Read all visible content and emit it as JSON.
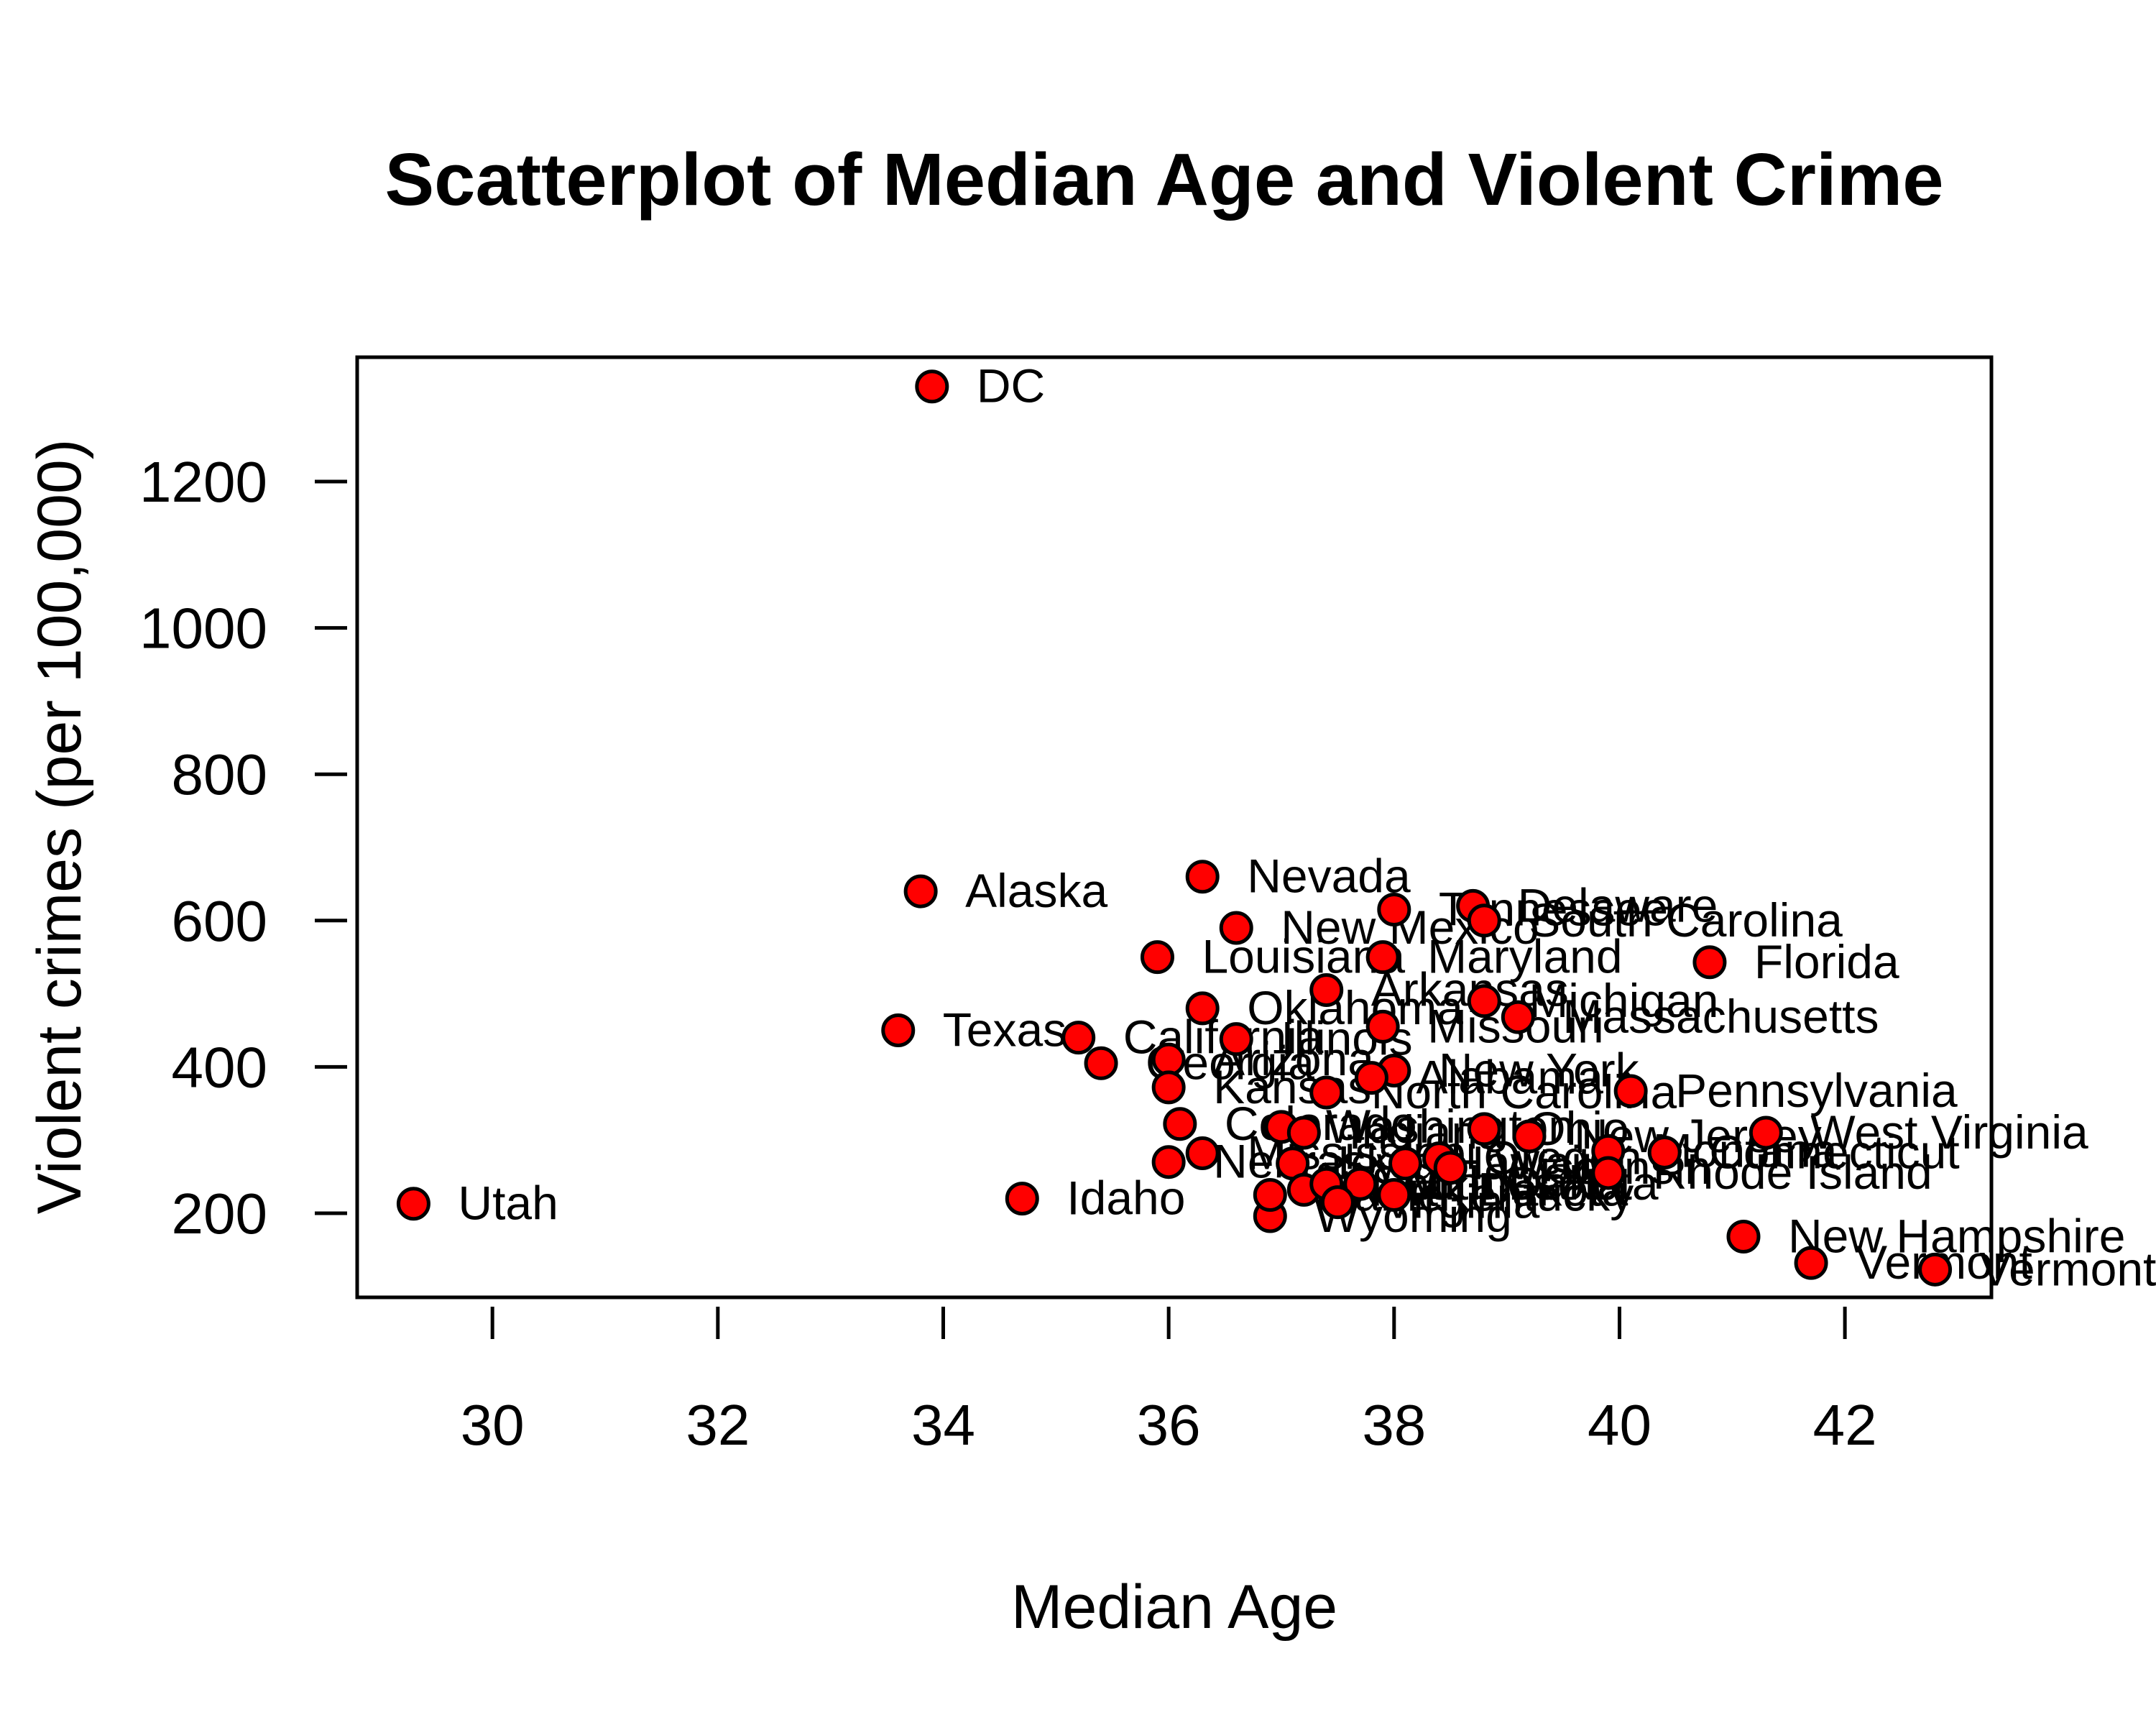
{
  "chart_data": {
    "type": "scatter",
    "title": "Scatterplot of Median Age and Violent Crime",
    "xlabel": "Median Age",
    "ylabel": "Violent crimes (per 100,000)",
    "xlim": [
      28.8,
      43.3
    ],
    "ylim": [
      85,
      1370
    ],
    "xticks": [
      30,
      32,
      34,
      36,
      38,
      40,
      42
    ],
    "yticks": [
      200,
      400,
      600,
      800,
      1000,
      1200
    ],
    "grid": false,
    "legend": "none",
    "point_color": "#ff0000",
    "points": [
      {
        "label": "DC",
        "x": 33.9,
        "y": 1330
      },
      {
        "label": "Alaska",
        "x": 33.8,
        "y": 640
      },
      {
        "label": "Nevada",
        "x": 36.3,
        "y": 660
      },
      {
        "label": "Delaware",
        "x": 38.7,
        "y": 620
      },
      {
        "label": "Tennessee",
        "x": 38.0,
        "y": 615
      },
      {
        "label": "South Carolina",
        "x": 38.8,
        "y": 600
      },
      {
        "label": "New Mexico",
        "x": 36.6,
        "y": 590
      },
      {
        "label": "Louisiana",
        "x": 35.9,
        "y": 550
      },
      {
        "label": "Maryland",
        "x": 37.9,
        "y": 550
      },
      {
        "label": "Florida",
        "x": 40.8,
        "y": 543
      },
      {
        "label": "Arkansas",
        "x": 37.4,
        "y": 505
      },
      {
        "label": "Michigan",
        "x": 38.8,
        "y": 490
      },
      {
        "label": "Oklahoma",
        "x": 36.3,
        "y": 480
      },
      {
        "label": "Massachusetts",
        "x": 39.1,
        "y": 468
      },
      {
        "label": "Missouri",
        "x": 37.9,
        "y": 455
      },
      {
        "label": "Texas",
        "x": 33.6,
        "y": 450
      },
      {
        "label": "Illinois",
        "x": 36.6,
        "y": 438
      },
      {
        "label": "California",
        "x": 35.2,
        "y": 440
      },
      {
        "label": "Georgia",
        "x": 35.4,
        "y": 405
      },
      {
        "label": "Arizona",
        "x": 36.0,
        "y": 410
      },
      {
        "label": "New York",
        "x": 38.0,
        "y": 395
      },
      {
        "label": "Alabama",
        "x": 37.8,
        "y": 385
      },
      {
        "label": "Kansas",
        "x": 36.0,
        "y": 372
      },
      {
        "label": "North Carolina",
        "x": 37.4,
        "y": 365
      },
      {
        "label": "Pennsylvania",
        "x": 40.1,
        "y": 367
      },
      {
        "label": "Colorado",
        "x": 36.1,
        "y": 322
      },
      {
        "label": "Washington",
        "x": 37.0,
        "y": 318
      },
      {
        "label": "Ohio",
        "x": 38.8,
        "y": 315
      },
      {
        "label": "New Jersey",
        "x": 39.2,
        "y": 305
      },
      {
        "label": "West Virginia",
        "x": 41.3,
        "y": 310
      },
      {
        "label": "Indiana",
        "x": 37.2,
        "y": 310
      },
      {
        "label": "Mississippi",
        "x": 36.3,
        "y": 282
      },
      {
        "label": "Nebraska",
        "x": 36.0,
        "y": 270
      },
      {
        "label": "Montana",
        "x": 39.9,
        "y": 285
      },
      {
        "label": "Connecticut",
        "x": 40.4,
        "y": 283
      },
      {
        "label": "Oregon",
        "x": 38.4,
        "y": 275
      },
      {
        "label": "Hawaii",
        "x": 38.1,
        "y": 268
      },
      {
        "label": "Iowa",
        "x": 37.1,
        "y": 268
      },
      {
        "label": "Rhode Island",
        "x": 39.9,
        "y": 255
      },
      {
        "label": "Wisconsin",
        "x": 38.5,
        "y": 262
      },
      {
        "label": "Minnesota",
        "x": 37.7,
        "y": 240
      },
      {
        "label": "North Dakota",
        "x": 37.2,
        "y": 232
      },
      {
        "label": "South Dakota",
        "x": 37.4,
        "y": 240
      },
      {
        "label": "Kentucky",
        "x": 38.0,
        "y": 225
      },
      {
        "label": "Virginia",
        "x": 37.5,
        "y": 215
      },
      {
        "label": "Idaho",
        "x": 34.7,
        "y": 220
      },
      {
        "label": "Utah",
        "x": 29.3,
        "y": 213
      },
      {
        "label": "Wyoming",
        "x": 36.9,
        "y": 196
      },
      {
        "label": "Maine",
        "x": 36.9,
        "y": 225
      },
      {
        "label": "New Hampshire",
        "x": 41.1,
        "y": 168
      },
      {
        "label": "Vermont",
        "x": 41.7,
        "y": 132
      },
      {
        "label": "Vermont",
        "x": 42.8,
        "y": 123
      }
    ]
  }
}
